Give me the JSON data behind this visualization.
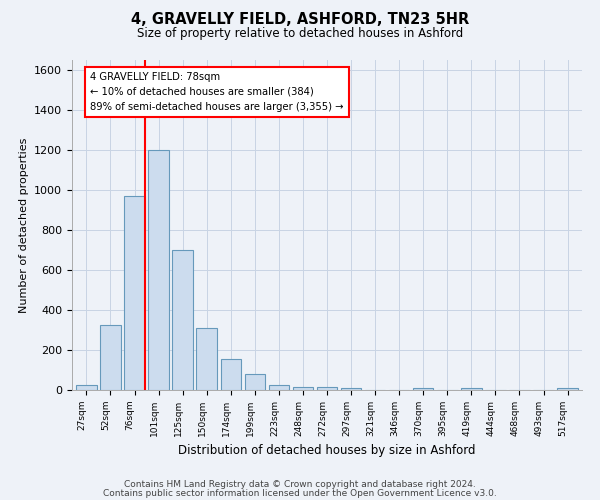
{
  "title": "4, GRAVELLY FIELD, ASHFORD, TN23 5HR",
  "subtitle": "Size of property relative to detached houses in Ashford",
  "xlabel": "Distribution of detached houses by size in Ashford",
  "ylabel": "Number of detached properties",
  "bar_labels": [
    "27sqm",
    "52sqm",
    "76sqm",
    "101sqm",
    "125sqm",
    "150sqm",
    "174sqm",
    "199sqm",
    "223sqm",
    "248sqm",
    "272sqm",
    "297sqm",
    "321sqm",
    "346sqm",
    "370sqm",
    "395sqm",
    "419sqm",
    "444sqm",
    "468sqm",
    "493sqm",
    "517sqm"
  ],
  "bar_values": [
    25,
    325,
    970,
    1200,
    700,
    310,
    155,
    80,
    25,
    15,
    15,
    10,
    0,
    0,
    10,
    0,
    10,
    0,
    0,
    0,
    10
  ],
  "bar_color": "#ccdcee",
  "bar_edge_color": "#6699bb",
  "red_line_index": 2,
  "annotation_line1": "4 GRAVELLY FIELD: 78sqm",
  "annotation_line2": "← 10% of detached houses are smaller (384)",
  "annotation_line3": "89% of semi-detached houses are larger (3,355) →",
  "annotation_box_color": "white",
  "annotation_box_edge_color": "red",
  "ylim": [
    0,
    1650
  ],
  "yticks": [
    0,
    200,
    400,
    600,
    800,
    1000,
    1200,
    1400,
    1600
  ],
  "grid_color": "#c8d4e4",
  "footnote1": "Contains HM Land Registry data © Crown copyright and database right 2024.",
  "footnote2": "Contains public sector information licensed under the Open Government Licence v3.0.",
  "bg_color": "#eef2f8"
}
